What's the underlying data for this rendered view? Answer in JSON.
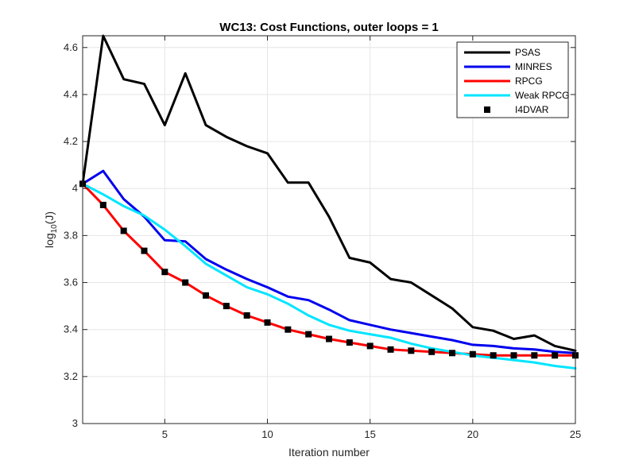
{
  "chart_data": {
    "type": "line",
    "title": "WC13: Cost Functions, outer loops = 1",
    "xlabel": "Iteration number",
    "ylabel_base": "log",
    "ylabel_sub": "10",
    "ylabel_suffix": "(J)",
    "xlim": [
      1,
      25
    ],
    "ylim": [
      3,
      4.65
    ],
    "x_ticks": [
      5,
      10,
      15,
      20,
      25
    ],
    "y_ticks": [
      3,
      3.2,
      3.4,
      3.6,
      3.8,
      4,
      4.2,
      4.4,
      4.6
    ],
    "y_tick_labels": [
      "3",
      "3.2",
      "3.4",
      "3.6",
      "3.8",
      "4",
      "4.2",
      "4.4",
      "4.6"
    ],
    "grid": true,
    "legend_position": "top-right",
    "x": [
      1,
      2,
      3,
      4,
      5,
      6,
      7,
      8,
      9,
      10,
      11,
      12,
      13,
      14,
      15,
      16,
      17,
      18,
      19,
      20,
      21,
      22,
      23,
      24,
      25
    ],
    "series": [
      {
        "name": "PSAS",
        "color": "#000000",
        "style": "line",
        "values": [
          4.02,
          4.65,
          4.465,
          4.445,
          4.27,
          4.49,
          4.27,
          4.22,
          4.18,
          4.15,
          4.025,
          4.025,
          3.88,
          3.705,
          3.685,
          3.615,
          3.6,
          3.545,
          3.49,
          3.41,
          3.395,
          3.36,
          3.375,
          3.33,
          3.31
        ]
      },
      {
        "name": "MINRES",
        "color": "#0000ee",
        "style": "line",
        "values": [
          4.02,
          4.075,
          3.955,
          3.88,
          3.78,
          3.775,
          3.7,
          3.655,
          3.615,
          3.58,
          3.54,
          3.525,
          3.485,
          3.44,
          3.42,
          3.4,
          3.385,
          3.37,
          3.355,
          3.335,
          3.33,
          3.32,
          3.315,
          3.305,
          3.3
        ]
      },
      {
        "name": "RPCG",
        "color": "#ff0000",
        "style": "line",
        "values": [
          4.02,
          3.93,
          3.82,
          3.735,
          3.645,
          3.6,
          3.545,
          3.5,
          3.46,
          3.43,
          3.4,
          3.38,
          3.36,
          3.345,
          3.33,
          3.315,
          3.31,
          3.305,
          3.3,
          3.295,
          3.29,
          3.29,
          3.29,
          3.29,
          3.29
        ]
      },
      {
        "name": "Weak RPCG",
        "color": "#00e5ff",
        "style": "line",
        "values": [
          4.02,
          3.975,
          3.925,
          3.885,
          3.825,
          3.755,
          3.68,
          3.63,
          3.58,
          3.55,
          3.51,
          3.46,
          3.42,
          3.395,
          3.38,
          3.365,
          3.34,
          3.32,
          3.305,
          3.29,
          3.28,
          3.27,
          3.26,
          3.245,
          3.235
        ]
      },
      {
        "name": "I4DVAR",
        "color": "#000000",
        "style": "marker",
        "values": [
          4.02,
          3.93,
          3.82,
          3.735,
          3.645,
          3.6,
          3.545,
          3.5,
          3.46,
          3.43,
          3.4,
          3.38,
          3.36,
          3.345,
          3.33,
          3.315,
          3.31,
          3.305,
          3.3,
          3.295,
          3.29,
          3.29,
          3.29,
          3.29,
          3.29
        ]
      }
    ]
  }
}
